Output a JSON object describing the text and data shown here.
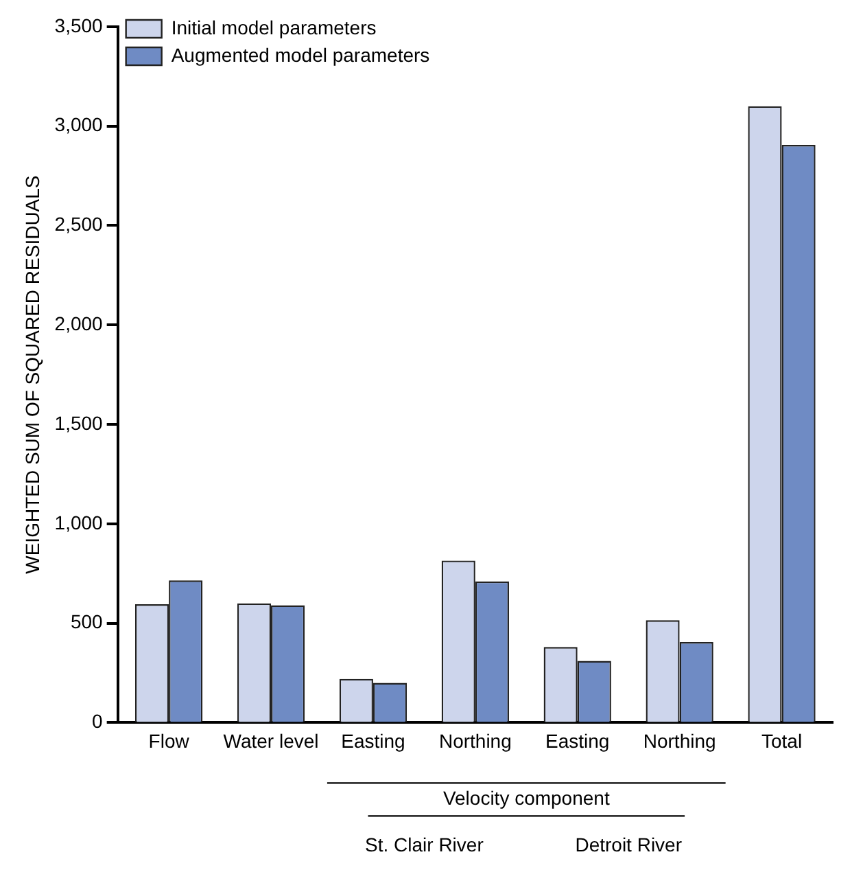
{
  "chart_data": {
    "type": "bar",
    "ylabel": "WEIGHTED SUM OF SQUARED RESIDUALS",
    "categories": [
      "Flow",
      "Water level",
      "Easting",
      "Northing",
      "Easting",
      "Northing",
      "Total"
    ],
    "series": [
      {
        "name": "Initial model parameters",
        "color": "#cdd5ec",
        "values": [
          595,
          600,
          220,
          815,
          380,
          515,
          3100
        ]
      },
      {
        "name": "Augmented model parameters",
        "color": "#6f8bc4",
        "values": [
          715,
          590,
          200,
          710,
          310,
          405,
          2905
        ]
      }
    ],
    "ylim": [
      0,
      3500
    ],
    "yticks": [
      0,
      500,
      {
        "value": 1000,
        "label": "1,000"
      },
      {
        "value": 1500,
        "label": "1,500"
      },
      {
        "value": 2000,
        "label": "2,000"
      },
      {
        "value": 2500,
        "label": "2,500"
      },
      {
        "value": 3000,
        "label": "3,000"
      },
      {
        "value": 3500,
        "label": "3,500"
      }
    ],
    "annotations": [
      "Velocity component",
      "St. Clair River",
      "Detroit River"
    ],
    "grid": false,
    "legend": "top left"
  }
}
